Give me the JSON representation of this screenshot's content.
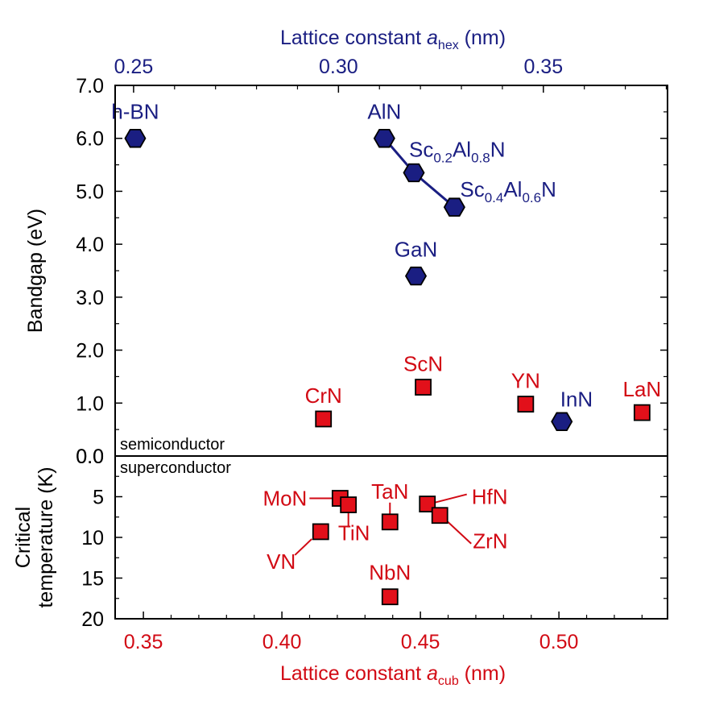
{
  "chart_data": {
    "type": "scatter",
    "top_axis": {
      "label_main": "Lattice constant ",
      "label_var": "a",
      "label_sub": "hex",
      "label_unit": " (nm)",
      "xlim": [
        0.2455,
        0.3803
      ],
      "ticks": [
        "0.25",
        "0.30",
        "0.35"
      ],
      "tick_values": [
        0.25,
        0.3,
        0.35
      ],
      "color": "#1a1e82"
    },
    "bottom_axis": {
      "label_main": "Lattice constant ",
      "label_var": "a",
      "label_sub": "cub",
      "label_unit": " (nm)",
      "xlim": [
        0.3398,
        0.5392
      ],
      "ticks": [
        "0.35",
        "0.40",
        "0.45",
        "0.50"
      ],
      "tick_values": [
        0.35,
        0.4,
        0.45,
        0.5
      ],
      "color": "#d20a14"
    },
    "bandgap_panel": {
      "ylabel": "Bandgap (eV)",
      "ylim": [
        0,
        7
      ],
      "ticks": [
        "0.0",
        "1.0",
        "2.0",
        "3.0",
        "4.0",
        "5.0",
        "6.0",
        "7.0"
      ],
      "tick_values": [
        0,
        1,
        2,
        3,
        4,
        5,
        6,
        7
      ],
      "region_label": "semiconductor",
      "hexagonal": [
        {
          "name": "h-BN",
          "x": 0.2504,
          "y": 6.0
        },
        {
          "name": "AlN",
          "x": 0.3112,
          "y": 6.0
        },
        {
          "name": "Sc0.2Al0.8N",
          "x": 0.3184,
          "y": 5.35
        },
        {
          "name": "Sc0.4Al0.6N",
          "x": 0.3283,
          "y": 4.7
        },
        {
          "name": "GaN",
          "x": 0.3189,
          "y": 3.4
        },
        {
          "name": "InN",
          "x": 0.3545,
          "y": 0.65
        }
      ],
      "hexagonal_line": [
        "AlN",
        "Sc0.2Al0.8N",
        "Sc0.4Al0.6N"
      ],
      "cubic": [
        {
          "name": "CrN",
          "x": 0.415,
          "y": 0.7
        },
        {
          "name": "ScN",
          "x": 0.451,
          "y": 1.3
        },
        {
          "name": "YN",
          "x": 0.488,
          "y": 0.98
        },
        {
          "name": "LaN",
          "x": 0.53,
          "y": 0.82
        }
      ]
    },
    "tc_panel": {
      "ylabel_line1": "Critical",
      "ylabel_line2": "temperature (K)",
      "ylim": [
        0,
        20
      ],
      "inverted": true,
      "ticks": [
        "5",
        "10",
        "15",
        "20"
      ],
      "tick_values": [
        5,
        10,
        15,
        20
      ],
      "region_label": "superconductor",
      "cubic": [
        {
          "name": "MoN",
          "x": 0.421,
          "y": 5.2
        },
        {
          "name": "TiN",
          "x": 0.424,
          "y": 6.0
        },
        {
          "name": "VN",
          "x": 0.414,
          "y": 9.3
        },
        {
          "name": "TaN",
          "x": 0.439,
          "y": 8.1
        },
        {
          "name": "HfN",
          "x": 0.4525,
          "y": 5.9
        },
        {
          "name": "ZrN",
          "x": 0.457,
          "y": 7.3
        },
        {
          "name": "NbN",
          "x": 0.439,
          "y": 17.3
        }
      ]
    },
    "colors": {
      "hex_fill": "#1a1e82",
      "cubic_fill": "#e2101a",
      "hex_text": "#1a1e82",
      "cubic_text": "#d20a14",
      "axis": "#000000"
    }
  }
}
